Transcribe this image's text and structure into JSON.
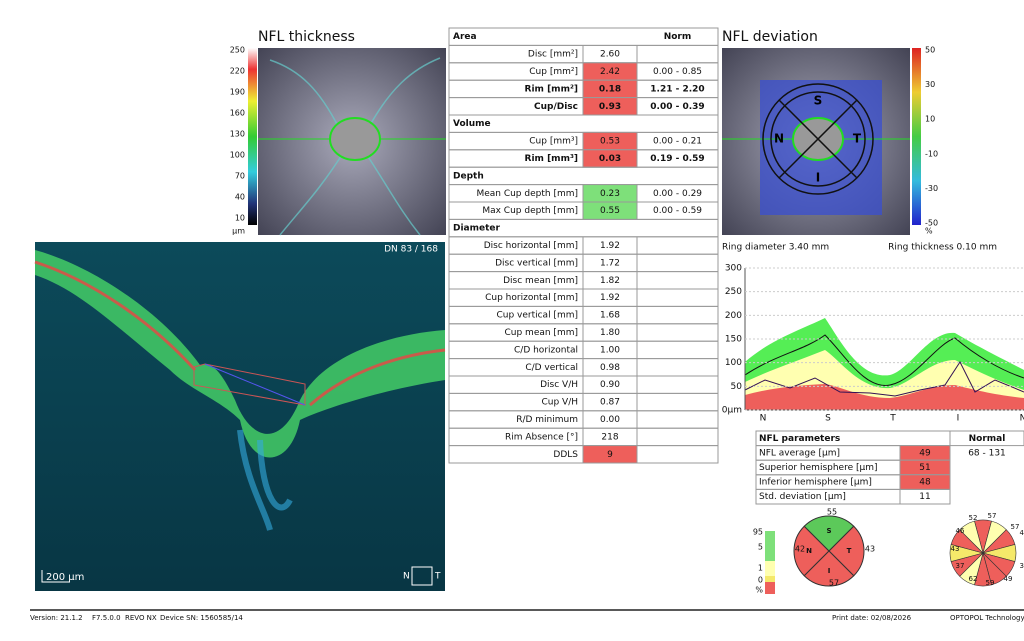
{
  "nfl_thickness": {
    "title": "NFL thickness",
    "scale": [
      "250",
      "220",
      "190",
      "160",
      "130",
      "100",
      "70",
      "40",
      "10"
    ],
    "unit": "µm"
  },
  "bscan": {
    "slice": "DN 83 / 168",
    "scale_bar": "200 µm",
    "left": "N",
    "right": "T"
  },
  "table": {
    "norm_header": "Norm",
    "sections": [
      {
        "title": "Area",
        "rows": [
          {
            "label": "Disc [mm²]",
            "value": "2.60"
          },
          {
            "label": "Cup [mm²]",
            "value": "2.42",
            "norm": "0.00 - 0.85",
            "color": "#ee5f5b"
          },
          {
            "label": "Rim [mm²]",
            "value": "0.18",
            "norm": "1.21 - 2.20",
            "color": "#ee5f5b",
            "bold": true
          },
          {
            "label": "Cup/Disc",
            "value": "0.93",
            "norm": "0.00 - 0.39",
            "color": "#ee5f5b",
            "bold": true
          }
        ]
      },
      {
        "title": "Volume",
        "rows": [
          {
            "label": "Cup [mm³]",
            "value": "0.53",
            "norm": "0.00 - 0.21",
            "color": "#ee5f5b"
          },
          {
            "label": "Rim [mm³]",
            "value": "0.03",
            "norm": "0.19 - 0.59",
            "color": "#ee5f5b",
            "bold": true
          }
        ]
      },
      {
        "title": "Depth",
        "rows": [
          {
            "label": "Mean Cup depth [mm]",
            "value": "0.23",
            "norm": "0.00 - 0.29",
            "color": "#7ee07a"
          },
          {
            "label": "Max Cup depth [mm]",
            "value": "0.55",
            "norm": "0.00 - 0.59",
            "color": "#7ee07a"
          }
        ]
      },
      {
        "title": "Diameter",
        "rows": [
          {
            "label": "Disc horizontal [mm]",
            "value": "1.92"
          },
          {
            "label": "Disc vertical [mm]",
            "value": "1.72"
          },
          {
            "label": "Disc mean [mm]",
            "value": "1.82"
          },
          {
            "label": "Cup horizontal [mm]",
            "value": "1.92"
          },
          {
            "label": "Cup vertical [mm]",
            "value": "1.68"
          },
          {
            "label": "Cup mean [mm]",
            "value": "1.80"
          },
          {
            "label": "C/D horizontal",
            "value": "1.00"
          },
          {
            "label": "C/D vertical",
            "value": "0.98"
          },
          {
            "label": "Disc V/H",
            "value": "0.90"
          },
          {
            "label": "Cup V/H",
            "value": "0.87"
          },
          {
            "label": "R/D minimum",
            "value": "0.00"
          },
          {
            "label": "Rim Absence [°]",
            "value": "218"
          },
          {
            "label": "DDLS",
            "value": "9",
            "color": "#ee5f5b"
          }
        ]
      }
    ]
  },
  "nfl_deviation": {
    "title": "NFL deviation",
    "scale": [
      "50",
      "30",
      "10",
      "-10",
      "-30",
      "-50"
    ],
    "unit": "%",
    "quadrants": [
      "S",
      "N",
      "T",
      "I"
    ],
    "ring_diameter": "Ring diameter 3.40 mm",
    "ring_thickness": "Ring thickness 0.10 mm"
  },
  "tsnit": {
    "yticks": [
      "300",
      "250",
      "200",
      "150",
      "100",
      "50",
      "0µm"
    ],
    "xlabels": [
      "N",
      "S",
      "T",
      "I",
      "N"
    ]
  },
  "nfl_parameters": {
    "header": "NFL parameters",
    "normal_header": "Normal",
    "rows": [
      {
        "label": "NFL average [µm]",
        "value": "49",
        "normal": "68 - 131",
        "color": "#ee5f5b"
      },
      {
        "label": "Superior hemisphere [µm]",
        "value": "51",
        "color": "#ee5f5b"
      },
      {
        "label": "Inferior hemisphere [µm]",
        "value": "48",
        "color": "#ee5f5b"
      },
      {
        "label": "Std. deviation [µm]",
        "value": "11"
      }
    ]
  },
  "legend": [
    "95",
    "5",
    "1",
    "0",
    "%"
  ],
  "quadrant_chart": {
    "labels": [
      "S",
      "N",
      "T",
      "I"
    ],
    "values": [
      "55",
      "42",
      "43",
      "57"
    ],
    "colors": [
      "#ee5f5b",
      "#ee5f5b",
      "#5cc95a",
      "#ee5f5b"
    ]
  },
  "clock_chart": {
    "values": [
      "57",
      "57",
      "45",
      "36",
      "49",
      "59",
      "62",
      "37",
      "43",
      "46",
      "52"
    ]
  },
  "footer": {
    "version": "Version: 21.1.2",
    "firmware": "F7.5.0.0",
    "device": "REVO NX",
    "serial": "Device SN: 1560585/14",
    "print_date": "Print date: 02/08/2026",
    "company": "OPTOPOL Technology S"
  }
}
